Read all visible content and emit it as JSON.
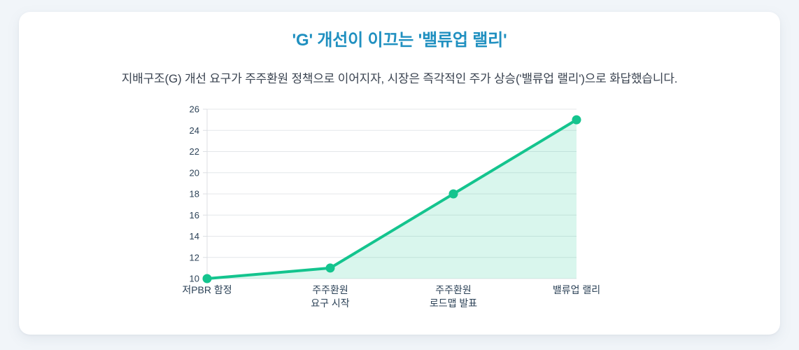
{
  "page": {
    "background_color": "#f1f5f9",
    "card_color": "#ffffff"
  },
  "header": {
    "title": "'G' 개선이 이끄는 '밸류업 랠리'",
    "title_color": "#2090c0",
    "subtitle": "지배구조(G) 개선 요구가 주주환원 정책으로 이어지자, 시장은 즉각적인 주가 상승('밸류업 랠리')으로 화답했습니다."
  },
  "chart_data": {
    "type": "area",
    "title": "",
    "xlabel": "",
    "ylabel": "",
    "categories": [
      "저PBR 함정",
      "주주환원\n요구 시작",
      "주주환원\n로드맵 발표",
      "밸류업 랠리"
    ],
    "values": [
      10,
      11,
      18,
      25
    ],
    "ylim": [
      10,
      26
    ],
    "ytick_step": 2,
    "grid": true,
    "legend_position": "none",
    "line_color": "#14c48e",
    "fill_color": "rgba(20, 196, 142, 0.16)",
    "grid_color": "#e4e7ea",
    "axis_color": "#dcdfe3",
    "tick_label_color": "#2c4257"
  }
}
